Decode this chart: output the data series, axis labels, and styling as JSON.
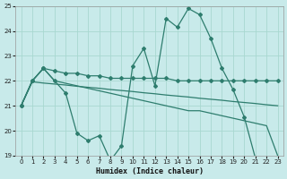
{
  "xlabel": "Humidex (Indice chaleur)",
  "background_color": "#c8eaea",
  "grid_color": "#a8d8d0",
  "line_color": "#2e7d6e",
  "xlim": [
    -0.5,
    23.5
  ],
  "ylim": [
    19.0,
    25.0
  ],
  "yticks": [
    19,
    20,
    21,
    22,
    23,
    24,
    25
  ],
  "xticks": [
    0,
    1,
    2,
    3,
    4,
    5,
    6,
    7,
    8,
    9,
    10,
    11,
    12,
    13,
    14,
    15,
    16,
    17,
    18,
    19,
    20,
    21,
    22,
    23
  ],
  "line1_x": [
    0,
    1,
    2,
    3,
    4,
    5,
    6,
    7,
    8,
    9,
    10,
    11,
    12,
    13,
    14,
    15,
    16,
    17,
    18,
    19,
    20,
    21,
    22,
    23
  ],
  "line1_y": [
    21.0,
    22.0,
    22.5,
    22.0,
    21.5,
    19.9,
    19.6,
    19.8,
    18.8,
    19.4,
    22.6,
    23.3,
    21.8,
    24.5,
    24.15,
    24.9,
    24.65,
    23.7,
    22.5,
    21.65,
    20.55,
    18.9,
    18.85,
    18.8
  ],
  "line2_x": [
    0,
    1,
    2,
    3,
    4,
    5,
    6,
    7,
    8,
    9,
    10,
    11,
    12,
    13,
    14,
    15,
    16,
    17,
    18,
    19,
    20,
    21,
    22,
    23
  ],
  "line2_y": [
    21.0,
    22.0,
    22.5,
    22.4,
    22.3,
    22.3,
    22.2,
    22.2,
    22.1,
    22.1,
    22.1,
    22.1,
    22.1,
    22.1,
    22.0,
    22.0,
    22.0,
    22.0,
    22.0,
    22.0,
    22.0,
    22.0,
    22.0,
    22.0
  ],
  "line3_x": [
    0,
    1,
    2,
    3,
    4,
    5,
    6,
    7,
    8,
    9,
    10,
    11,
    12,
    13,
    14,
    15,
    16,
    17,
    18,
    19,
    20,
    21,
    22,
    23
  ],
  "line3_y": [
    21.0,
    21.96,
    21.91,
    21.87,
    21.83,
    21.78,
    21.74,
    21.7,
    21.65,
    21.61,
    21.57,
    21.52,
    21.48,
    21.43,
    21.39,
    21.35,
    21.3,
    21.26,
    21.22,
    21.17,
    21.13,
    21.09,
    21.04,
    21.0
  ],
  "line4_x": [
    0,
    1,
    2,
    3,
    4,
    5,
    6,
    7,
    8,
    9,
    10,
    11,
    12,
    13,
    14,
    15,
    16,
    17,
    18,
    19,
    20,
    21,
    22,
    23
  ],
  "line4_y": [
    21.0,
    22.0,
    22.5,
    22.0,
    21.9,
    21.8,
    21.7,
    21.6,
    21.5,
    21.4,
    21.3,
    21.2,
    21.1,
    21.0,
    20.9,
    20.8,
    20.8,
    20.7,
    20.6,
    20.5,
    20.4,
    20.3,
    20.2,
    19.0
  ]
}
